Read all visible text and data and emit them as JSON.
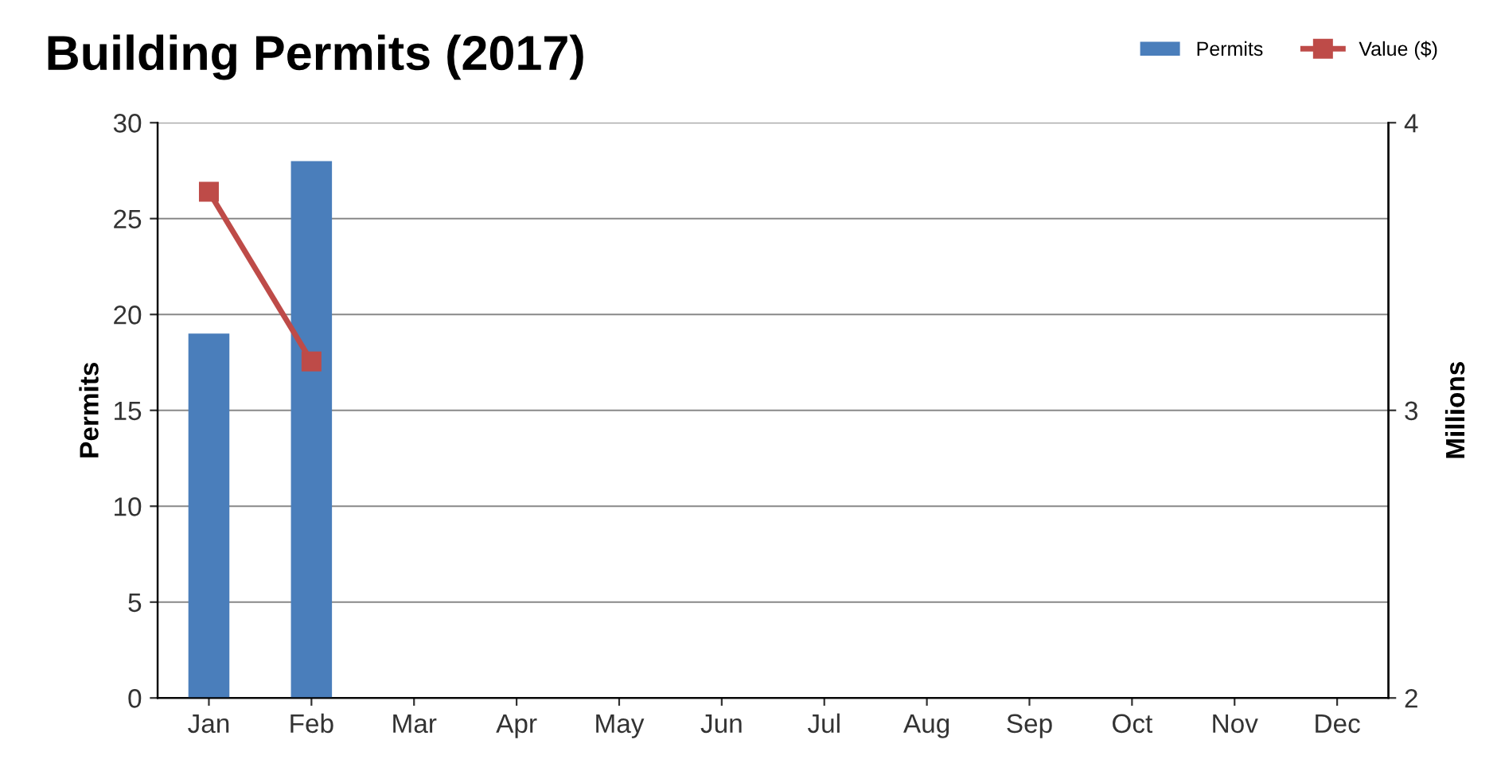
{
  "chart_data": {
    "type": "bar",
    "title": "Building Permits (2017)",
    "ylabel": "Permits",
    "y2label": "Millions",
    "categories": [
      "Jan",
      "Feb",
      "Mar",
      "Apr",
      "May",
      "Jun",
      "Jul",
      "Aug",
      "Sep",
      "Oct",
      "Nov",
      "Dec"
    ],
    "series": [
      {
        "name": "Permits",
        "color": "#4a7ebb",
        "values": [
          19,
          28,
          null,
          null,
          null,
          null,
          null,
          null,
          null,
          null,
          null,
          null
        ]
      },
      {
        "name": "Value ($)",
        "type": "line",
        "axis": "y2",
        "color": "#be4b48",
        "marker": "square",
        "values": [
          3.76,
          3.17,
          null,
          null,
          null,
          null,
          null,
          null,
          null,
          null,
          null,
          null
        ]
      }
    ],
    "ylim": [
      0,
      30
    ],
    "yticks": [
      0,
      5,
      10,
      15,
      20,
      25,
      30
    ],
    "y2lim": [
      2,
      4
    ],
    "y2ticks": [
      2,
      3,
      4
    ],
    "grid": "y",
    "legend": "top right"
  }
}
